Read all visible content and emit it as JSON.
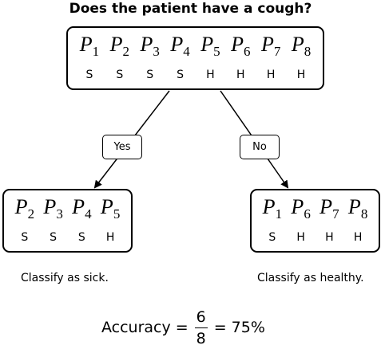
{
  "question": "Does the patient have a cough?",
  "root": {
    "patients": [
      {
        "id": "P",
        "sub": "1",
        "label": "S"
      },
      {
        "id": "P",
        "sub": "2",
        "label": "S"
      },
      {
        "id": "P",
        "sub": "3",
        "label": "S"
      },
      {
        "id": "P",
        "sub": "4",
        "label": "S"
      },
      {
        "id": "P",
        "sub": "5",
        "label": "H"
      },
      {
        "id": "P",
        "sub": "6",
        "label": "H"
      },
      {
        "id": "P",
        "sub": "7",
        "label": "H"
      },
      {
        "id": "P",
        "sub": "8",
        "label": "H"
      }
    ]
  },
  "branches": {
    "yes": "Yes",
    "no": "No"
  },
  "left": {
    "patients": [
      {
        "id": "P",
        "sub": "2",
        "label": "S"
      },
      {
        "id": "P",
        "sub": "3",
        "label": "S"
      },
      {
        "id": "P",
        "sub": "4",
        "label": "S"
      },
      {
        "id": "P",
        "sub": "5",
        "label": "H"
      }
    ],
    "caption": "Classify as sick."
  },
  "right": {
    "patients": [
      {
        "id": "P",
        "sub": "1",
        "label": "S"
      },
      {
        "id": "P",
        "sub": "6",
        "label": "H"
      },
      {
        "id": "P",
        "sub": "7",
        "label": "H"
      },
      {
        "id": "P",
        "sub": "8",
        "label": "H"
      }
    ],
    "caption": "Classify as healthy."
  },
  "accuracy": {
    "label": "Accuracy =",
    "numerator": "6",
    "denominator": "8",
    "result": "= 75%"
  }
}
